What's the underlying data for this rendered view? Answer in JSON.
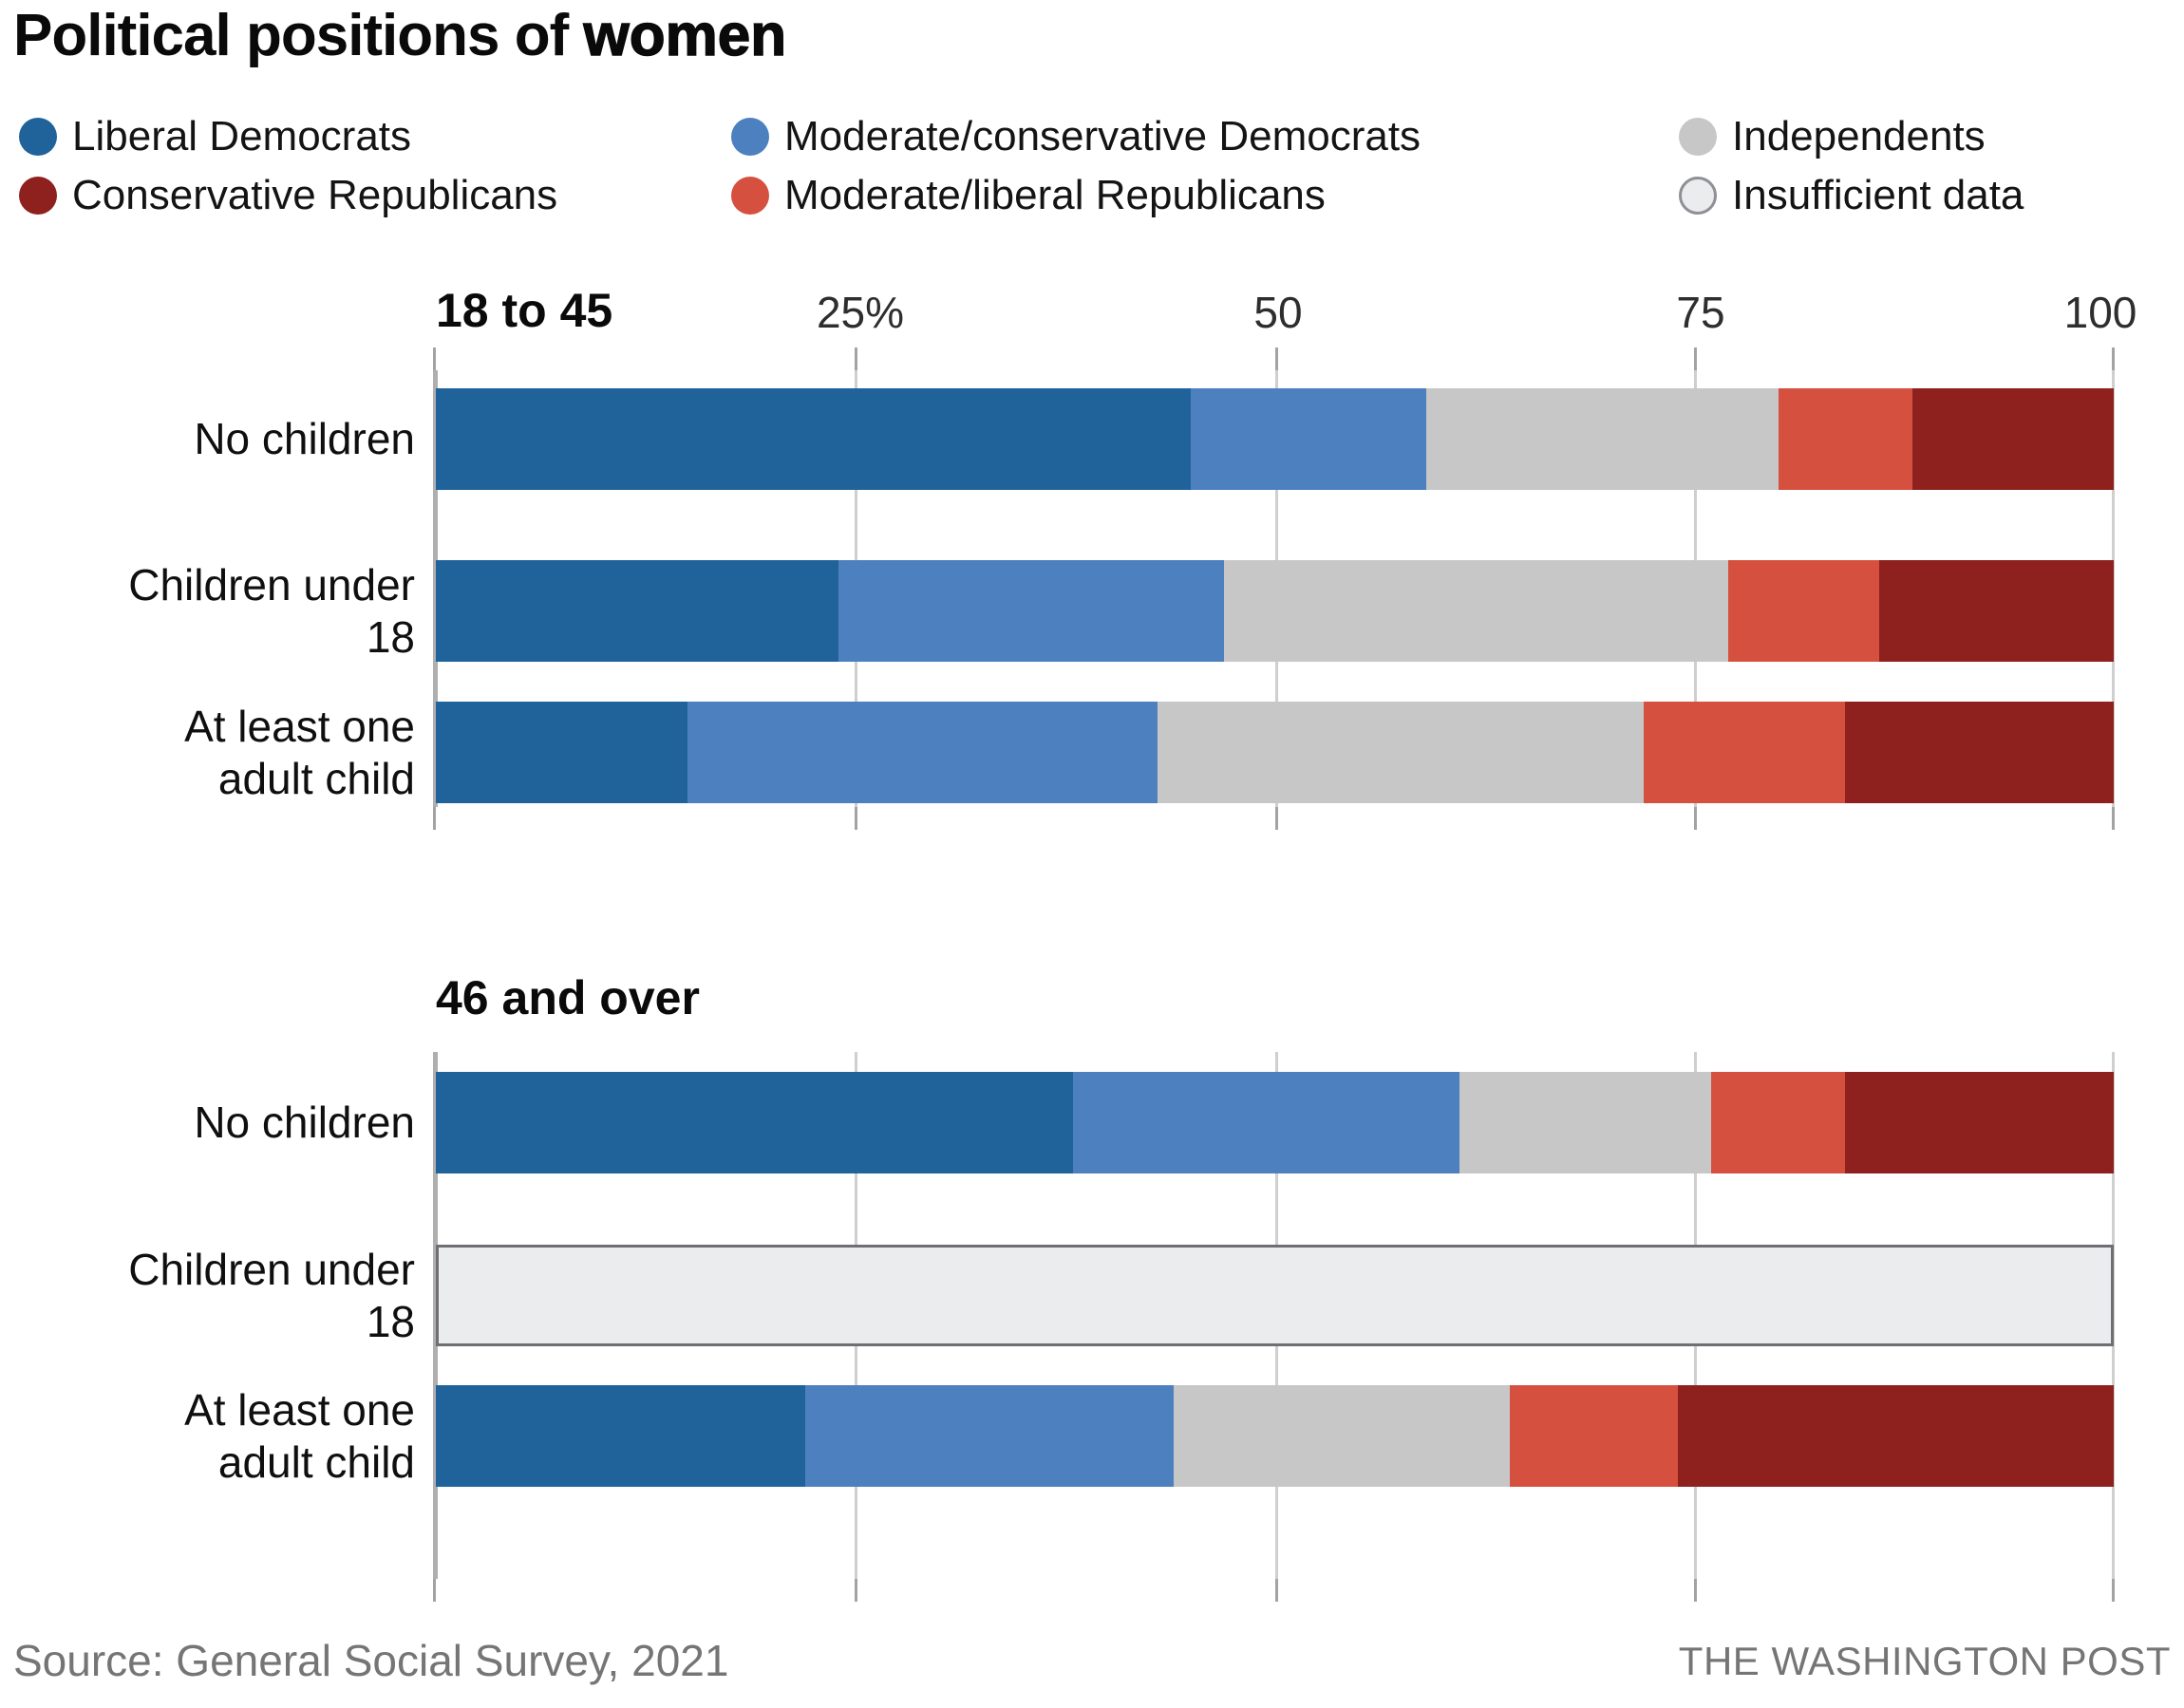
{
  "title": {
    "prefix": "Political positions of ",
    "emphasis": "women"
  },
  "legend": {
    "items": [
      {
        "label": "Liberal Democrats",
        "color": "#20639B",
        "outlined": false
      },
      {
        "label": "Moderate/conservative Democrats",
        "color": "#4D80BF",
        "outlined": false
      },
      {
        "label": "Independents",
        "color": "#C7C7C7",
        "outlined": false
      },
      {
        "label": "Conservative Republicans",
        "color": "#8E211E",
        "outlined": false
      },
      {
        "label": "Moderate/liberal Republicans",
        "color": "#D6503F",
        "outlined": false
      },
      {
        "label": "Insufficient data",
        "color": "#EAECEE",
        "outlined": true
      }
    ]
  },
  "axis": {
    "tick_labels": [
      "25%",
      "50",
      "75",
      "100"
    ],
    "range": [
      0,
      100
    ]
  },
  "chart_data": [
    {
      "type": "bar",
      "stacked": true,
      "orientation": "horizontal",
      "group_title": "18 to 45",
      "categories": [
        "No children",
        "Children under 18",
        "At least one adult child"
      ],
      "series": [
        {
          "name": "Liberal Democrats",
          "values": [
            45,
            24,
            15
          ]
        },
        {
          "name": "Moderate/conservative Democrats",
          "values": [
            14,
            23,
            28
          ]
        },
        {
          "name": "Independents",
          "values": [
            21,
            30,
            29
          ]
        },
        {
          "name": "Moderate/liberal Republicans",
          "values": [
            8,
            9,
            12
          ]
        },
        {
          "name": "Conservative Republicans",
          "values": [
            12,
            14,
            16
          ]
        }
      ],
      "xlim": [
        0,
        100
      ],
      "grid": true,
      "insufficient_rows": []
    },
    {
      "type": "bar",
      "stacked": true,
      "orientation": "horizontal",
      "group_title": "46 and over",
      "categories": [
        "No children",
        "Children under 18",
        "At least one adult child"
      ],
      "series": [
        {
          "name": "Liberal Democrats",
          "values": [
            38,
            null,
            22
          ]
        },
        {
          "name": "Moderate/conservative Democrats",
          "values": [
            23,
            null,
            22
          ]
        },
        {
          "name": "Independents",
          "values": [
            15,
            null,
            20
          ]
        },
        {
          "name": "Moderate/liberal Republicans",
          "values": [
            8,
            null,
            10
          ]
        },
        {
          "name": "Conservative Republicans",
          "values": [
            16,
            null,
            26
          ]
        }
      ],
      "xlim": [
        0,
        100
      ],
      "grid": true,
      "insufficient_rows": [
        1
      ],
      "insufficient_label": "Insufficient data"
    }
  ],
  "footer": {
    "source": "Source: General Social Survey, 2021",
    "credit": "THE WASHINGTON POST"
  }
}
